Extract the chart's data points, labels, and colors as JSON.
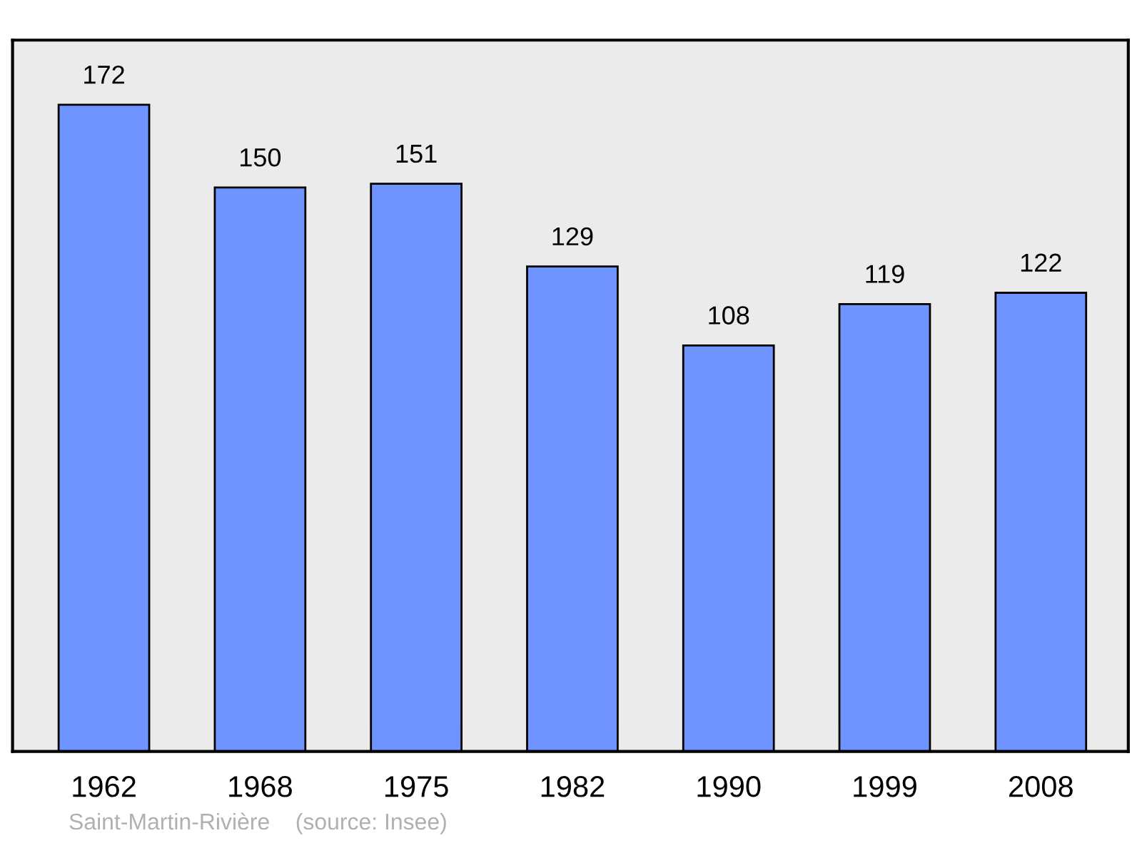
{
  "chart_data": {
    "type": "bar",
    "categories": [
      "1962",
      "1968",
      "1975",
      "1982",
      "1990",
      "1999",
      "2008"
    ],
    "values": [
      172,
      150,
      151,
      129,
      108,
      119,
      122
    ],
    "color": "#7094ff",
    "data_labels": true,
    "grid": false,
    "legend": false,
    "tick_labels": "x",
    "annotations": [
      "Saint-Martin-Rivière    (source: Insee)"
    ]
  }
}
